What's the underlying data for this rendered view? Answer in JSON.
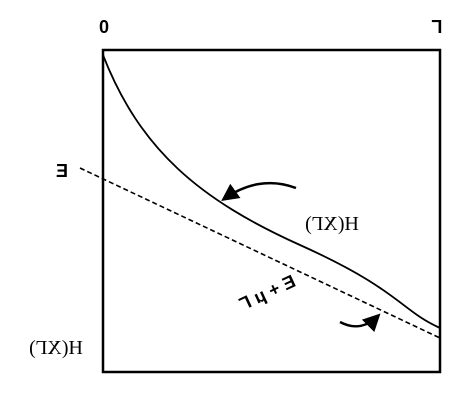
{
  "axis_labels": {
    "origin": "0",
    "end": "Γ",
    "energy": "E"
  },
  "curves": {
    "entropy": "H(XΓ)",
    "line": "E + μ Γ"
  },
  "corner_label": "H(XΓ)"
}
